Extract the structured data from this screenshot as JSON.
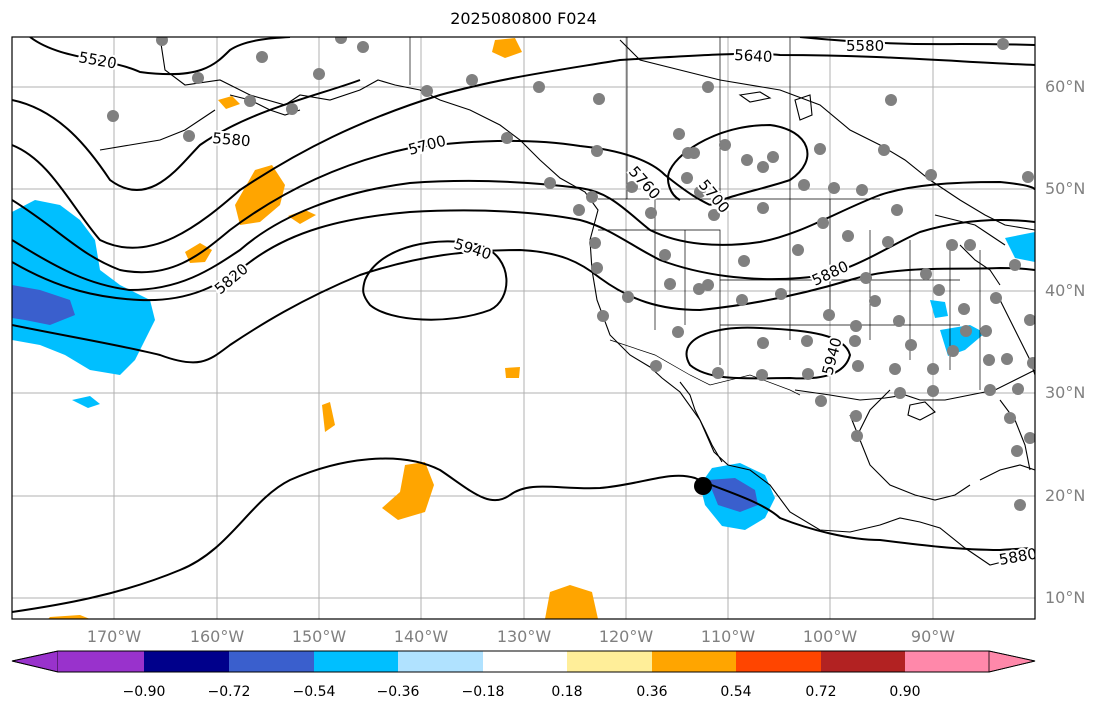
{
  "title": "2025080800 F024",
  "map": {
    "projection": "PlateCarree",
    "lon_range": [
      -180,
      -80
    ],
    "lat_range": [
      8,
      65
    ],
    "lat_ticks": [
      "60°N",
      "50°N",
      "40°N",
      "30°N",
      "20°N",
      "10°N"
    ],
    "lon_ticks": [
      "170°W",
      "160°W",
      "150°W",
      "140°W",
      "130°W",
      "120°W",
      "110°W",
      "100°W",
      "90°W"
    ],
    "contour_labels": [
      "5520",
      "5580",
      "5580",
      "5640",
      "5700",
      "5760",
      "5700",
      "5820",
      "5940",
      "5880",
      "5940",
      "5880"
    ],
    "storm_marker": {
      "lon": -112.4,
      "lat": 21.0
    },
    "station_color": "#808080",
    "land_outline_color": "#000000",
    "gridline_color": "#b0b0b0"
  },
  "colorbar": {
    "colors": [
      "#9932cc",
      "#00008b",
      "#3a5fcd",
      "#00bfff",
      "#b0e2ff",
      "#ffffff",
      "#ffee99",
      "#ffa500",
      "#ff4500",
      "#b22222",
      "#ff88aa"
    ],
    "ticks": [
      "−0.90",
      "−0.72",
      "−0.54",
      "−0.36",
      "−0.18",
      "0.18",
      "0.36",
      "0.54",
      "0.72",
      "0.90"
    ]
  }
}
